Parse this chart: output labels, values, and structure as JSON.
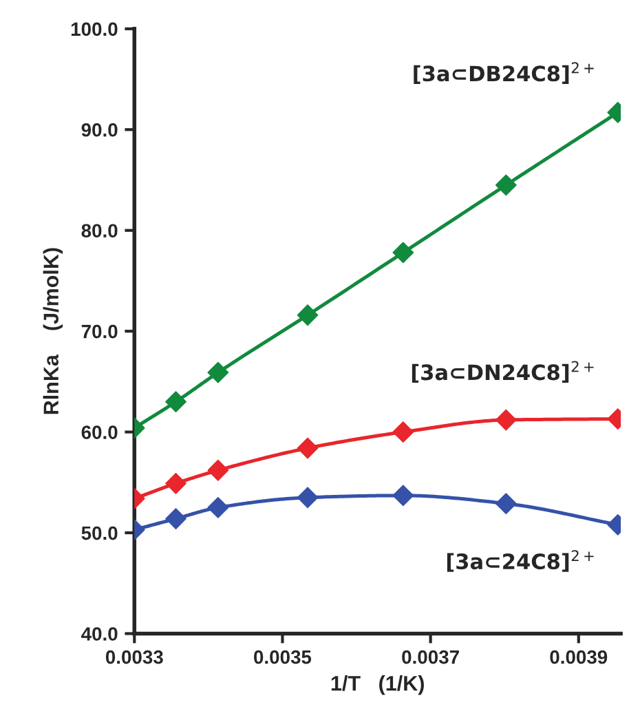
{
  "chart_data": {
    "type": "line",
    "xlabel": "1/T   (1/K)",
    "ylabel": "RlnKa    (J/molK)",
    "xlim": [
      0.0033,
      0.003957
    ],
    "xticks": [
      0.0033,
      0.0035,
      0.0037,
      0.0039
    ],
    "ylim": [
      40,
      100
    ],
    "yticks": [
      {
        "value": 40,
        "label": "40.0"
      },
      {
        "value": 50,
        "label": "50.0"
      },
      {
        "value": 60,
        "label": "60.0"
      },
      {
        "value": 70,
        "label": "70.0"
      },
      {
        "value": 80,
        "label": "80.0"
      },
      {
        "value": 90,
        "label": "90.0"
      },
      {
        "value": 100,
        "label": "100.0"
      }
    ],
    "x": [
      0.0033,
      0.003356,
      0.003413,
      0.003534,
      0.003663,
      0.003802,
      0.003953
    ],
    "marker": "diamond",
    "grid": false,
    "legend": false,
    "series": [
      {
        "name": "[3a⊂DB24C8]$^{2+}$",
        "color": "#118a3e",
        "values": [
          60.4,
          63.0,
          65.9,
          71.6,
          77.8,
          84.5,
          91.7
        ]
      },
      {
        "name": "[3a⊂DN24C8]$^{2+}$",
        "color": "#e8262b",
        "values": [
          53.4,
          54.9,
          56.2,
          58.4,
          60.0,
          61.2,
          61.3
        ]
      },
      {
        "name": "[3a⊂24C8]$^{2+}$",
        "color": "#3552a8",
        "values": [
          50.3,
          51.4,
          52.5,
          53.5,
          53.7,
          52.9,
          50.8
        ]
      }
    ]
  }
}
